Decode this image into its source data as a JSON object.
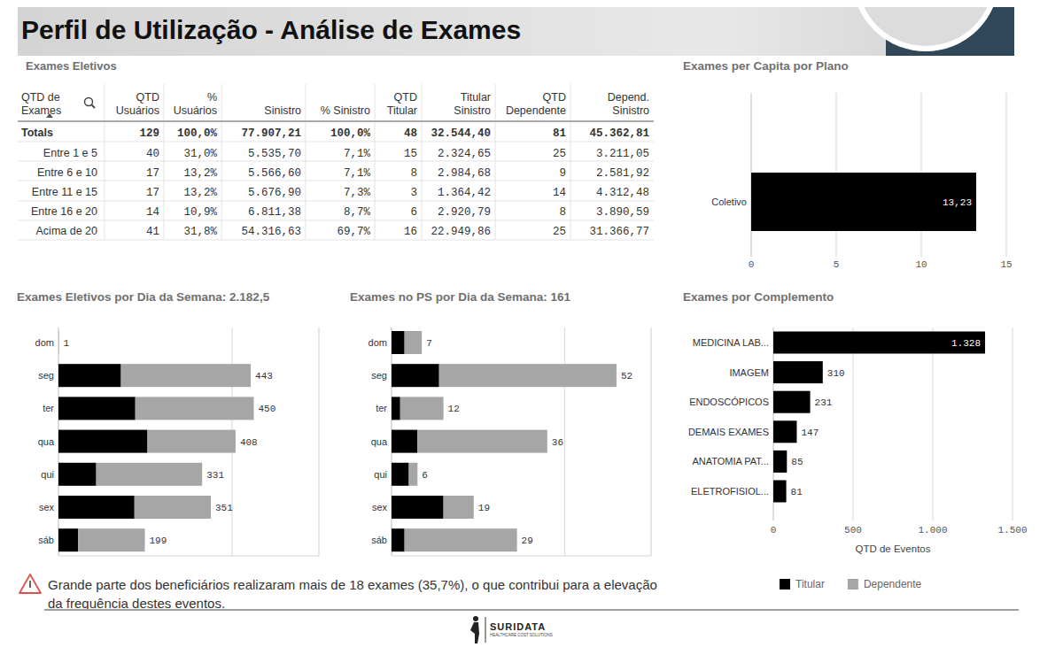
{
  "header": {
    "title": "Perfil de Utilização - Análise de Exames"
  },
  "table": {
    "title": "Exames Eletivos",
    "columns": [
      "QTD de\nExames",
      "QTD\nUsuários",
      "%\nUsuários",
      "Sinistro",
      "% Sinistro",
      "QTD\nTitular",
      "Titular\nSinistro",
      "QTD\nDependente",
      "Depend.\nSinistro"
    ],
    "rows": [
      [
        "Totals",
        "129",
        "100,0%",
        "77.907,21",
        "100,0%",
        "48",
        "32.544,40",
        "81",
        "45.362,81"
      ],
      [
        "Entre 1 e 5",
        "40",
        "31,0%",
        "5.535,70",
        "7,1%",
        "15",
        "2.324,65",
        "25",
        "3.211,05"
      ],
      [
        "Entre 6 e 10",
        "17",
        "13,2%",
        "5.566,60",
        "7,1%",
        "8",
        "2.984,68",
        "9",
        "2.581,92"
      ],
      [
        "Entre 11 e 15",
        "17",
        "13,2%",
        "5.676,90",
        "7,3%",
        "3",
        "1.364,42",
        "14",
        "4.312,48"
      ],
      [
        "Entre 16 e 20",
        "14",
        "10,9%",
        "6.811,38",
        "8,7%",
        "6",
        "2.920,79",
        "8",
        "3.890,59"
      ],
      [
        "Acima de 20",
        "41",
        "31,8%",
        "54.316,63",
        "69,7%",
        "16",
        "22.949,86",
        "25",
        "31.366,77"
      ]
    ]
  },
  "chart_data": [
    {
      "type": "bar",
      "title": "Exames per Capita por Plano",
      "orientation": "horizontal",
      "categories": [
        "Coletivo"
      ],
      "values": [
        13.23
      ],
      "value_labels": [
        "13,23"
      ],
      "color": "#000000",
      "xlim": [
        0,
        15
      ],
      "xticks": [
        0,
        5,
        10,
        15
      ],
      "grid": true,
      "data_labels": true
    },
    {
      "type": "bar",
      "title": "Exames Eletivos por Dia da Semana: 2.182,5",
      "orientation": "horizontal",
      "stacked": true,
      "categories": [
        "dom",
        "seg",
        "ter",
        "qua",
        "qui",
        "sex",
        "sáb"
      ],
      "series": [
        {
          "name": "Titular",
          "color": "#000000",
          "values": [
            0,
            144,
            177,
            205,
            87,
            175,
            45
          ]
        },
        {
          "name": "Dependente",
          "color": "#a6a6a6",
          "values": [
            1,
            299,
            273,
            203,
            244,
            176,
            154
          ]
        }
      ],
      "totals": [
        1,
        443,
        450,
        408,
        331,
        351,
        199
      ],
      "xlim": [
        0,
        600
      ],
      "xticks": [
        0,
        400
      ],
      "grid": true,
      "tick_labels": "y",
      "legend": "bottom-right"
    },
    {
      "type": "bar",
      "title": "Exames no PS por Dia da Semana: 161",
      "orientation": "horizontal",
      "stacked": true,
      "categories": [
        "dom",
        "seg",
        "ter",
        "qua",
        "qui",
        "sex",
        "sáb"
      ],
      "series": [
        {
          "color": "#000000",
          "values": [
            3,
            11,
            2,
            6,
            4,
            12,
            3
          ]
        },
        {
          "color": "#a6a6a6",
          "values": [
            4,
            41,
            10,
            30,
            2,
            7,
            26
          ]
        }
      ],
      "totals": [
        7,
        52,
        12,
        36,
        6,
        19,
        29
      ],
      "xlim": [
        0,
        60
      ],
      "xticks": [
        0,
        40
      ],
      "grid": true,
      "tick_labels": "y"
    },
    {
      "type": "bar",
      "title": "Exames por Complemento",
      "orientation": "horizontal",
      "categories": [
        "MEDICINA LAB...",
        "IMAGEM",
        "ENDOSCÓPICOS",
        "DEMAIS EXAMES",
        "ANATOMIA PAT...",
        "ELETROFISIOL..."
      ],
      "values": [
        1328,
        310,
        231,
        147,
        85,
        81
      ],
      "value_labels": [
        "1.328",
        "310",
        "231",
        "147",
        "85",
        "81"
      ],
      "color": "#000000",
      "xlim": [
        0,
        1500
      ],
      "xticks": [
        0,
        500,
        {
          "value": 1000,
          "label": "1.000"
        },
        {
          "value": 1500,
          "label": "1.500"
        }
      ],
      "xlabel": "QTD de Eventos",
      "grid": true,
      "data_labels": true
    }
  ],
  "note": "Grande parte dos beneficiários realizaram mais de 18 exames (35,7%), o que contribui para a elevação da frequência destes eventos.",
  "footer": {
    "brand": "SURIDATA",
    "tagline": "HEALTHCARE COST SOLUTIONS"
  }
}
